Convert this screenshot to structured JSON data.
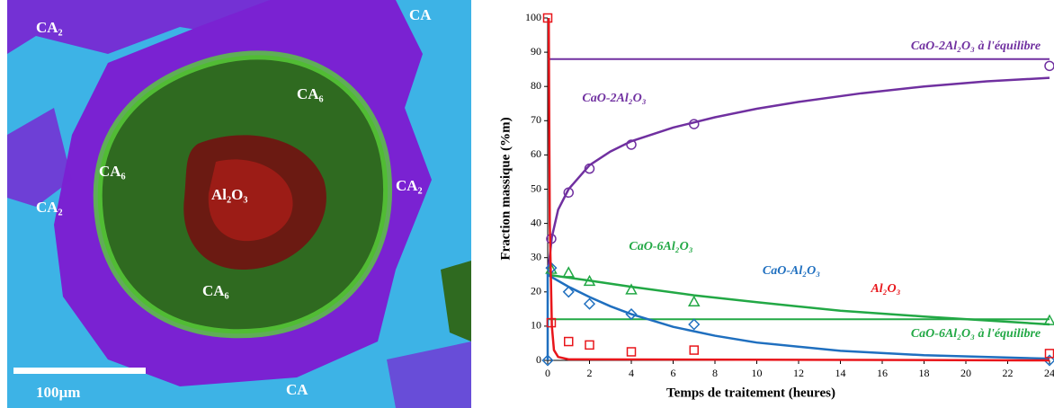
{
  "micrograph": {
    "labels": [
      "CA₂",
      "CA",
      "CA₆",
      "CA₆",
      "Al₂O₃",
      "CA₂",
      "CA₂",
      "CA₆",
      "CA"
    ],
    "scale_bar": "100µm"
  },
  "chart_data": {
    "type": "scatter",
    "xlabel": "Temps de traitement (heures)",
    "ylabel": "Fraction massique (%m)",
    "xlim": [
      0,
      24
    ],
    "ylim": [
      0,
      100
    ],
    "xticks": [
      0,
      2,
      4,
      6,
      8,
      10,
      12,
      14,
      16,
      18,
      20,
      22,
      24
    ],
    "yticks": [
      0,
      10,
      20,
      30,
      40,
      50,
      60,
      70,
      80,
      90,
      100
    ],
    "series": [
      {
        "name": "CaO-2Al₂O₃",
        "color": "#7030a0",
        "marker": "circle",
        "x": [
          0.17,
          1,
          2,
          4,
          7,
          24
        ],
        "values": [
          35.5,
          49,
          56,
          63,
          69,
          86
        ],
        "fit": {
          "x": [
            0,
            0.2,
            0.5,
            1,
            2,
            3,
            4,
            6,
            8,
            10,
            12,
            15,
            18,
            21,
            24
          ],
          "values": [
            25,
            36,
            44,
            50,
            57,
            61,
            64,
            68,
            71,
            73.5,
            75.5,
            78,
            80,
            81.5,
            82.5
          ]
        }
      },
      {
        "name": "CaO-6Al₂O₃",
        "color": "#22a845",
        "marker": "triangle",
        "x": [
          0.17,
          1,
          2,
          4,
          7,
          24
        ],
        "values": [
          26.5,
          25.5,
          23,
          20.5,
          17,
          11.5
        ],
        "fit": {
          "x": [
            0,
            2,
            4,
            7,
            10,
            14,
            18,
            24
          ],
          "values": [
            25,
            23.3,
            21.5,
            19,
            17,
            14.5,
            12.8,
            10.5
          ]
        }
      },
      {
        "name": "CaO-Al₂O₃",
        "color": "#1f6fbf",
        "marker": "diamond",
        "x": [
          0,
          0.17,
          1,
          2,
          4,
          7,
          24
        ],
        "values": [
          0,
          27,
          20,
          16.5,
          13.5,
          10.5,
          0
        ],
        "fit": {
          "x": [
            0,
            0,
            1,
            2,
            3,
            4,
            6,
            8,
            10,
            14,
            18,
            24
          ],
          "values": [
            0,
            25,
            21.5,
            18.5,
            15.8,
            13.5,
            9.8,
            7.2,
            5.2,
            2.8,
            1.5,
            0.5
          ]
        }
      },
      {
        "name": "Al₂O₃",
        "color": "#e8161b",
        "marker": "square",
        "x": [
          0,
          0.17,
          1,
          2,
          4,
          7,
          24
        ],
        "values": [
          100,
          11,
          5.5,
          4.5,
          2.5,
          3,
          2
        ],
        "fit": {
          "x": [
            0.05,
            0.1,
            0.2,
            0.3,
            0.5,
            1,
            24
          ],
          "values": [
            100,
            40,
            10,
            3,
            1,
            0.3,
            0
          ]
        }
      }
    ],
    "equilibria": [
      {
        "label": "CaO-2Al₂O₃ à l'équilibre",
        "value": 88,
        "color": "#7030a0"
      },
      {
        "label": "CaO-6Al₂O₃ à l'équilibre",
        "value": 12,
        "color": "#22a845"
      }
    ]
  }
}
